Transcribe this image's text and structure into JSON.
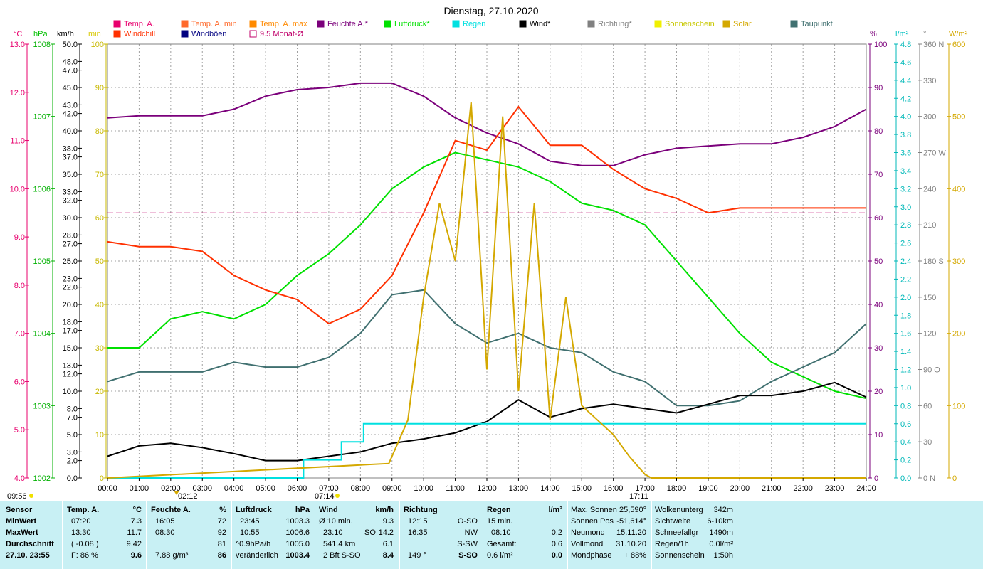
{
  "title": "Dienstag, 27.10.2020",
  "colors": {
    "temp": "#e8006e",
    "temp_min": "#ff6a2b",
    "temp_max": "#ff8a00",
    "windchill": "#ff3000",
    "humidity": "#7b007b",
    "pressure": "#00e000",
    "rain": "#00e0e0",
    "wind": "#000000",
    "gusts": "#000080",
    "direction": "#808080",
    "sunshine": "#f0f000",
    "solar": "#d4a800",
    "dewpoint": "#407070",
    "month_avg": "#c0006a",
    "status_bg": "#c8f0f4"
  },
  "axis_headers": {
    "celsius": "°C",
    "hpa": "hPa",
    "kmh": "km/h",
    "min": "min",
    "percent": "%",
    "lm2": "l/m²",
    "deg": "°",
    "wm2": "W/m²"
  },
  "chart_data": {
    "type": "line",
    "title": "Dienstag, 27.10.2020",
    "legend": [
      {
        "label": "Temp. A.",
        "color": "#e8006e",
        "marker": "box"
      },
      {
        "label": "Temp. A. min",
        "color": "#ff6a2b",
        "marker": "box"
      },
      {
        "label": "Temp. A. max",
        "color": "#ff8a00",
        "marker": "box"
      },
      {
        "label": "Feuchte A.*",
        "color": "#7b007b",
        "marker": "box"
      },
      {
        "label": "Luftdruck*",
        "color": "#00e000",
        "marker": "box"
      },
      {
        "label": "Regen",
        "color": "#00e0e0",
        "marker": "box"
      },
      {
        "label": "Wind*",
        "color": "#000000",
        "marker": "box"
      },
      {
        "label": "Richtung*",
        "color": "#808080",
        "marker": "box"
      },
      {
        "label": "Sonnenschein",
        "color": "#f0f000",
        "marker": "box"
      },
      {
        "label": "Solar",
        "color": "#d4a800",
        "marker": "box"
      },
      {
        "label": "Taupunkt",
        "color": "#407070",
        "marker": "box"
      },
      {
        "label": "Windchill",
        "color": "#ff3000",
        "marker": "box"
      },
      {
        "label": "Windböen",
        "color": "#000080",
        "marker": "box"
      },
      {
        "label": "9.5 Monat-Ø",
        "color": "#c0006a",
        "marker": "hollow"
      }
    ],
    "x_ticks": [
      "00:00",
      "01:00",
      "02:00",
      "03:00",
      "04:00",
      "05:00",
      "06:00",
      "07:00",
      "08:00",
      "09:00",
      "10:00",
      "11:00",
      "12:00",
      "13:00",
      "14:00",
      "15:00",
      "16:00",
      "17:00",
      "18:00",
      "19:00",
      "20:00",
      "21:00",
      "22:00",
      "23:00",
      "24:00"
    ],
    "x_range_h": [
      0,
      24
    ],
    "sun_labels": [
      "09:56",
      "02:12",
      "07:14",
      "17:11"
    ],
    "axes": {
      "temp_c": {
        "range": [
          4.0,
          13.0
        ],
        "ticks": [
          "13.0",
          "12.0",
          "11.0",
          "10.0",
          "9.0",
          "8.0",
          "7.0",
          "6.0",
          "5.0",
          "4.0"
        ]
      },
      "pressure_hpa": {
        "range": [
          1002,
          1008
        ],
        "ticks": [
          "1008",
          "1007",
          "1006",
          "1005",
          "1004",
          "1003",
          "1002"
        ]
      },
      "wind_kmh": {
        "ticks": [
          "50.0",
          "48.0",
          "47.0",
          "45.0",
          "43.0",
          "42.0",
          "40.0",
          "38.0",
          "37.0",
          "35.0",
          "33.0",
          "32.0",
          "30.0",
          "28.0",
          "27.0",
          "25.0",
          "23.0",
          "22.0",
          "20.0",
          "18.0",
          "17.0",
          "15.0",
          "13.0",
          "12.0",
          "10.0",
          "8.0",
          "7.0",
          "5.0",
          "3.0",
          "2.0",
          "0.0"
        ]
      },
      "sunshine_min": {
        "range": [
          0,
          100
        ],
        "ticks": [
          "100",
          "90",
          "80",
          "70",
          "60",
          "50",
          "40",
          "30",
          "20",
          "10",
          "0"
        ]
      },
      "humidity_pct": {
        "range": [
          0,
          100
        ],
        "ticks": [
          "100",
          "90",
          "80",
          "70",
          "60",
          "50",
          "40",
          "30",
          "20",
          "10",
          "0"
        ]
      },
      "rain_lm2": {
        "range": [
          0,
          4.8
        ],
        "ticks": [
          "4.8",
          "4.6",
          "4.4",
          "4.2",
          "4.0",
          "3.8",
          "3.6",
          "3.4",
          "3.2",
          "3.0",
          "2.8",
          "2.6",
          "2.4",
          "2.2",
          "2.0",
          "1.8",
          "1.6",
          "1.4",
          "1.2",
          "1.0",
          "0.8",
          "0.6",
          "0.4",
          "0.2",
          "0.0"
        ]
      },
      "direction_deg": {
        "range": [
          0,
          360
        ],
        "ticks": [
          "360 N",
          "330",
          "300",
          "270 W",
          "240",
          "210",
          "180 S",
          "150",
          "120",
          "90 O",
          "60",
          "30",
          "0 N"
        ]
      },
      "solar_wm2": {
        "range": [
          0,
          600
        ],
        "ticks": [
          "600",
          "500",
          "400",
          "300",
          "200",
          "100",
          "0"
        ]
      }
    },
    "series": [
      {
        "name": "Feuchte A.*",
        "axis": "humidity_pct",
        "color": "#7b007b",
        "x": [
          0,
          1,
          2,
          3,
          4,
          5,
          6,
          7,
          8,
          9,
          10,
          11,
          12,
          13,
          14,
          15,
          16,
          17,
          18,
          19,
          20,
          21,
          22,
          23,
          24
        ],
        "values": [
          83,
          83.5,
          83.5,
          83.5,
          85,
          88,
          89.5,
          90,
          91,
          91,
          88,
          83,
          79.5,
          77,
          73,
          72,
          72,
          74.5,
          76,
          76.5,
          77,
          77,
          78.5,
          81,
          85
        ]
      },
      {
        "name": "Luftdruck*",
        "axis": "pressure_hpa",
        "color": "#00e000",
        "x": [
          0,
          1,
          2,
          3,
          4,
          5,
          6,
          7,
          8,
          9,
          10,
          11,
          12,
          13,
          14,
          15,
          16,
          17,
          18,
          19,
          20,
          21,
          22,
          23,
          24
        ],
        "values": [
          1003.8,
          1003.8,
          1004.2,
          1004.3,
          1004.2,
          1004.4,
          1004.8,
          1005.1,
          1005.5,
          1006.0,
          1006.3,
          1006.5,
          1006.4,
          1006.3,
          1006.1,
          1005.8,
          1005.7,
          1005.5,
          1005.0,
          1004.5,
          1004.0,
          1003.6,
          1003.4,
          1003.2,
          1003.1
        ]
      },
      {
        "name": "Temp. A.",
        "axis": "temp_c",
        "color": "#ff3000",
        "x": [
          0,
          1,
          2,
          3,
          4,
          5,
          6,
          7,
          8,
          9,
          10,
          11,
          12,
          13,
          14,
          15,
          16,
          17,
          18,
          19,
          20,
          21,
          22,
          23,
          24
        ],
        "values": [
          8.9,
          8.8,
          8.8,
          8.7,
          8.2,
          7.9,
          7.7,
          7.2,
          7.5,
          8.2,
          9.5,
          11.0,
          10.8,
          11.7,
          10.9,
          10.9,
          10.4,
          10.0,
          9.8,
          9.5,
          9.6,
          9.6,
          9.6,
          9.6,
          9.6
        ]
      },
      {
        "name": "Taupunkt",
        "axis": "temp_c",
        "color": "#407070",
        "x": [
          0,
          1,
          2,
          3,
          4,
          5,
          6,
          7,
          8,
          9,
          10,
          11,
          12,
          13,
          14,
          15,
          16,
          17,
          18,
          19,
          20,
          21,
          22,
          23,
          24
        ],
        "values": [
          6.0,
          6.2,
          6.2,
          6.2,
          6.4,
          6.3,
          6.3,
          6.5,
          7.0,
          7.8,
          7.9,
          7.2,
          6.8,
          7.0,
          6.7,
          6.6,
          6.2,
          6.0,
          5.5,
          5.5,
          5.6,
          6.0,
          6.3,
          6.6,
          7.2
        ]
      },
      {
        "name": "Wind*",
        "axis": "wind_kmh",
        "color": "#000000",
        "x": [
          0,
          1,
          2,
          3,
          4,
          5,
          6,
          7,
          8,
          9,
          10,
          11,
          12,
          13,
          14,
          15,
          16,
          17,
          18,
          19,
          20,
          21,
          22,
          23,
          24
        ],
        "values": [
          2.5,
          3.7,
          4.0,
          3.5,
          2.8,
          2.0,
          2.0,
          2.5,
          3.0,
          4.0,
          4.5,
          5.2,
          6.5,
          9.0,
          7.0,
          8.0,
          8.5,
          8.0,
          7.5,
          8.5,
          9.5,
          9.5,
          10.0,
          11.0,
          9.3
        ]
      },
      {
        "name": "Regen",
        "axis": "rain_lm2",
        "color": "#00e0e0",
        "x": [
          0,
          6.2,
          6.2,
          7.4,
          7.4,
          8.1,
          8.1,
          24
        ],
        "values": [
          0,
          0,
          0.2,
          0.2,
          0.4,
          0.4,
          0.6,
          0.6
        ]
      },
      {
        "name": "Solar",
        "axis": "solar_wm2",
        "color": "#d4a800",
        "x": [
          0,
          8.9,
          9.5,
          10,
          10.5,
          11,
          11.5,
          12,
          12.5,
          13,
          13.5,
          14,
          14.5,
          15,
          15.5,
          16,
          16.5,
          17,
          17.2,
          24
        ],
        "values": [
          0,
          20,
          80,
          250,
          380,
          300,
          520,
          150,
          500,
          120,
          380,
          80,
          250,
          100,
          80,
          60,
          30,
          5,
          0,
          0
        ]
      }
    ],
    "month_average_c": 9.5
  },
  "statusbar": {
    "headers": {
      "sensor": "Sensor",
      "temp": "Temp. A.",
      "temp_unit": "°C",
      "hum": "Feuchte A.",
      "hum_unit": "%",
      "press": "Luftdruck",
      "press_unit": "hPa",
      "wind": "Wind",
      "wind_unit": "km/h",
      "dir": "Richtung",
      "rain": "Regen",
      "rain_unit": "l/m²"
    },
    "rowlabels": {
      "min": "MinWert",
      "max": "MaxWert",
      "avg": "Durchschnitt",
      "now": "27.10. 23:55"
    },
    "temp": {
      "min_time": "07:20",
      "min_val": "7.3",
      "max_time": "13:30",
      "max_val": "11.7",
      "avg_extra": "( -0.08 )",
      "avg_val": "9.42",
      "now_extra": "F: 86 %",
      "now_val": "9.6"
    },
    "hum": {
      "min_time": "16:05",
      "min_val": "72",
      "max_time": "08:30",
      "max_val": "92",
      "avg_val": "81",
      "now_extra": "7.88 g/m³",
      "now_val": "86"
    },
    "press": {
      "min_time": "23:45",
      "min_val": "1003.3",
      "max_time": "10:55",
      "max_val": "1006.6",
      "avg_extra": "^0.9hPa/h",
      "avg_val": "1005.0",
      "now_extra": "veränderlich",
      "now_val": "1003.4"
    },
    "wind": {
      "r1_label": "Ø 10 min.",
      "r1_val": "9.3",
      "r2_label": "23:10",
      "r2_extra": "SO",
      "r2_val": "14.2",
      "r3_label": "541.4 km",
      "r3_val": "6.1",
      "r4_label": "2 Bft S-SO",
      "r4_val": "8.4"
    },
    "dir": {
      "r1_label": "12:15",
      "r1_val": "O-SO",
      "r2_label": "16:35",
      "r2_val": "NW",
      "r3_val": "S-SW",
      "r4_label": "149 °",
      "r4_val": "S-SO"
    },
    "rain": {
      "r1_label": "15 min.",
      "r1_val": "",
      "r2_label": "08:10",
      "r2_val": "0.2",
      "r3_label": "Gesamt:",
      "r3_val": "0.6",
      "r4_label": "0.6 l/m²",
      "r4_val": "0.0"
    },
    "sun": {
      "l1": "Max. Sonnen",
      "v1": "25,590°",
      "l2": "Sonnen Pos",
      "v2": "-51,614°",
      "l3": "Neumond",
      "v3": "15.11.20",
      "l4": "Vollmond",
      "v4": "31.10.20",
      "l5": "Mondphase",
      "v5": "+ 88%"
    },
    "misc": {
      "l1": "Wolkenunterg",
      "v1": "342m",
      "l2": "Sichtweite",
      "v2": "6-10km",
      "l3": "Schneefallgr",
      "v3": "1490m",
      "l4": "Regen/1h",
      "v4": "0.0l/m²",
      "l5": "Sonnenschein",
      "v5": "1:50h"
    }
  }
}
